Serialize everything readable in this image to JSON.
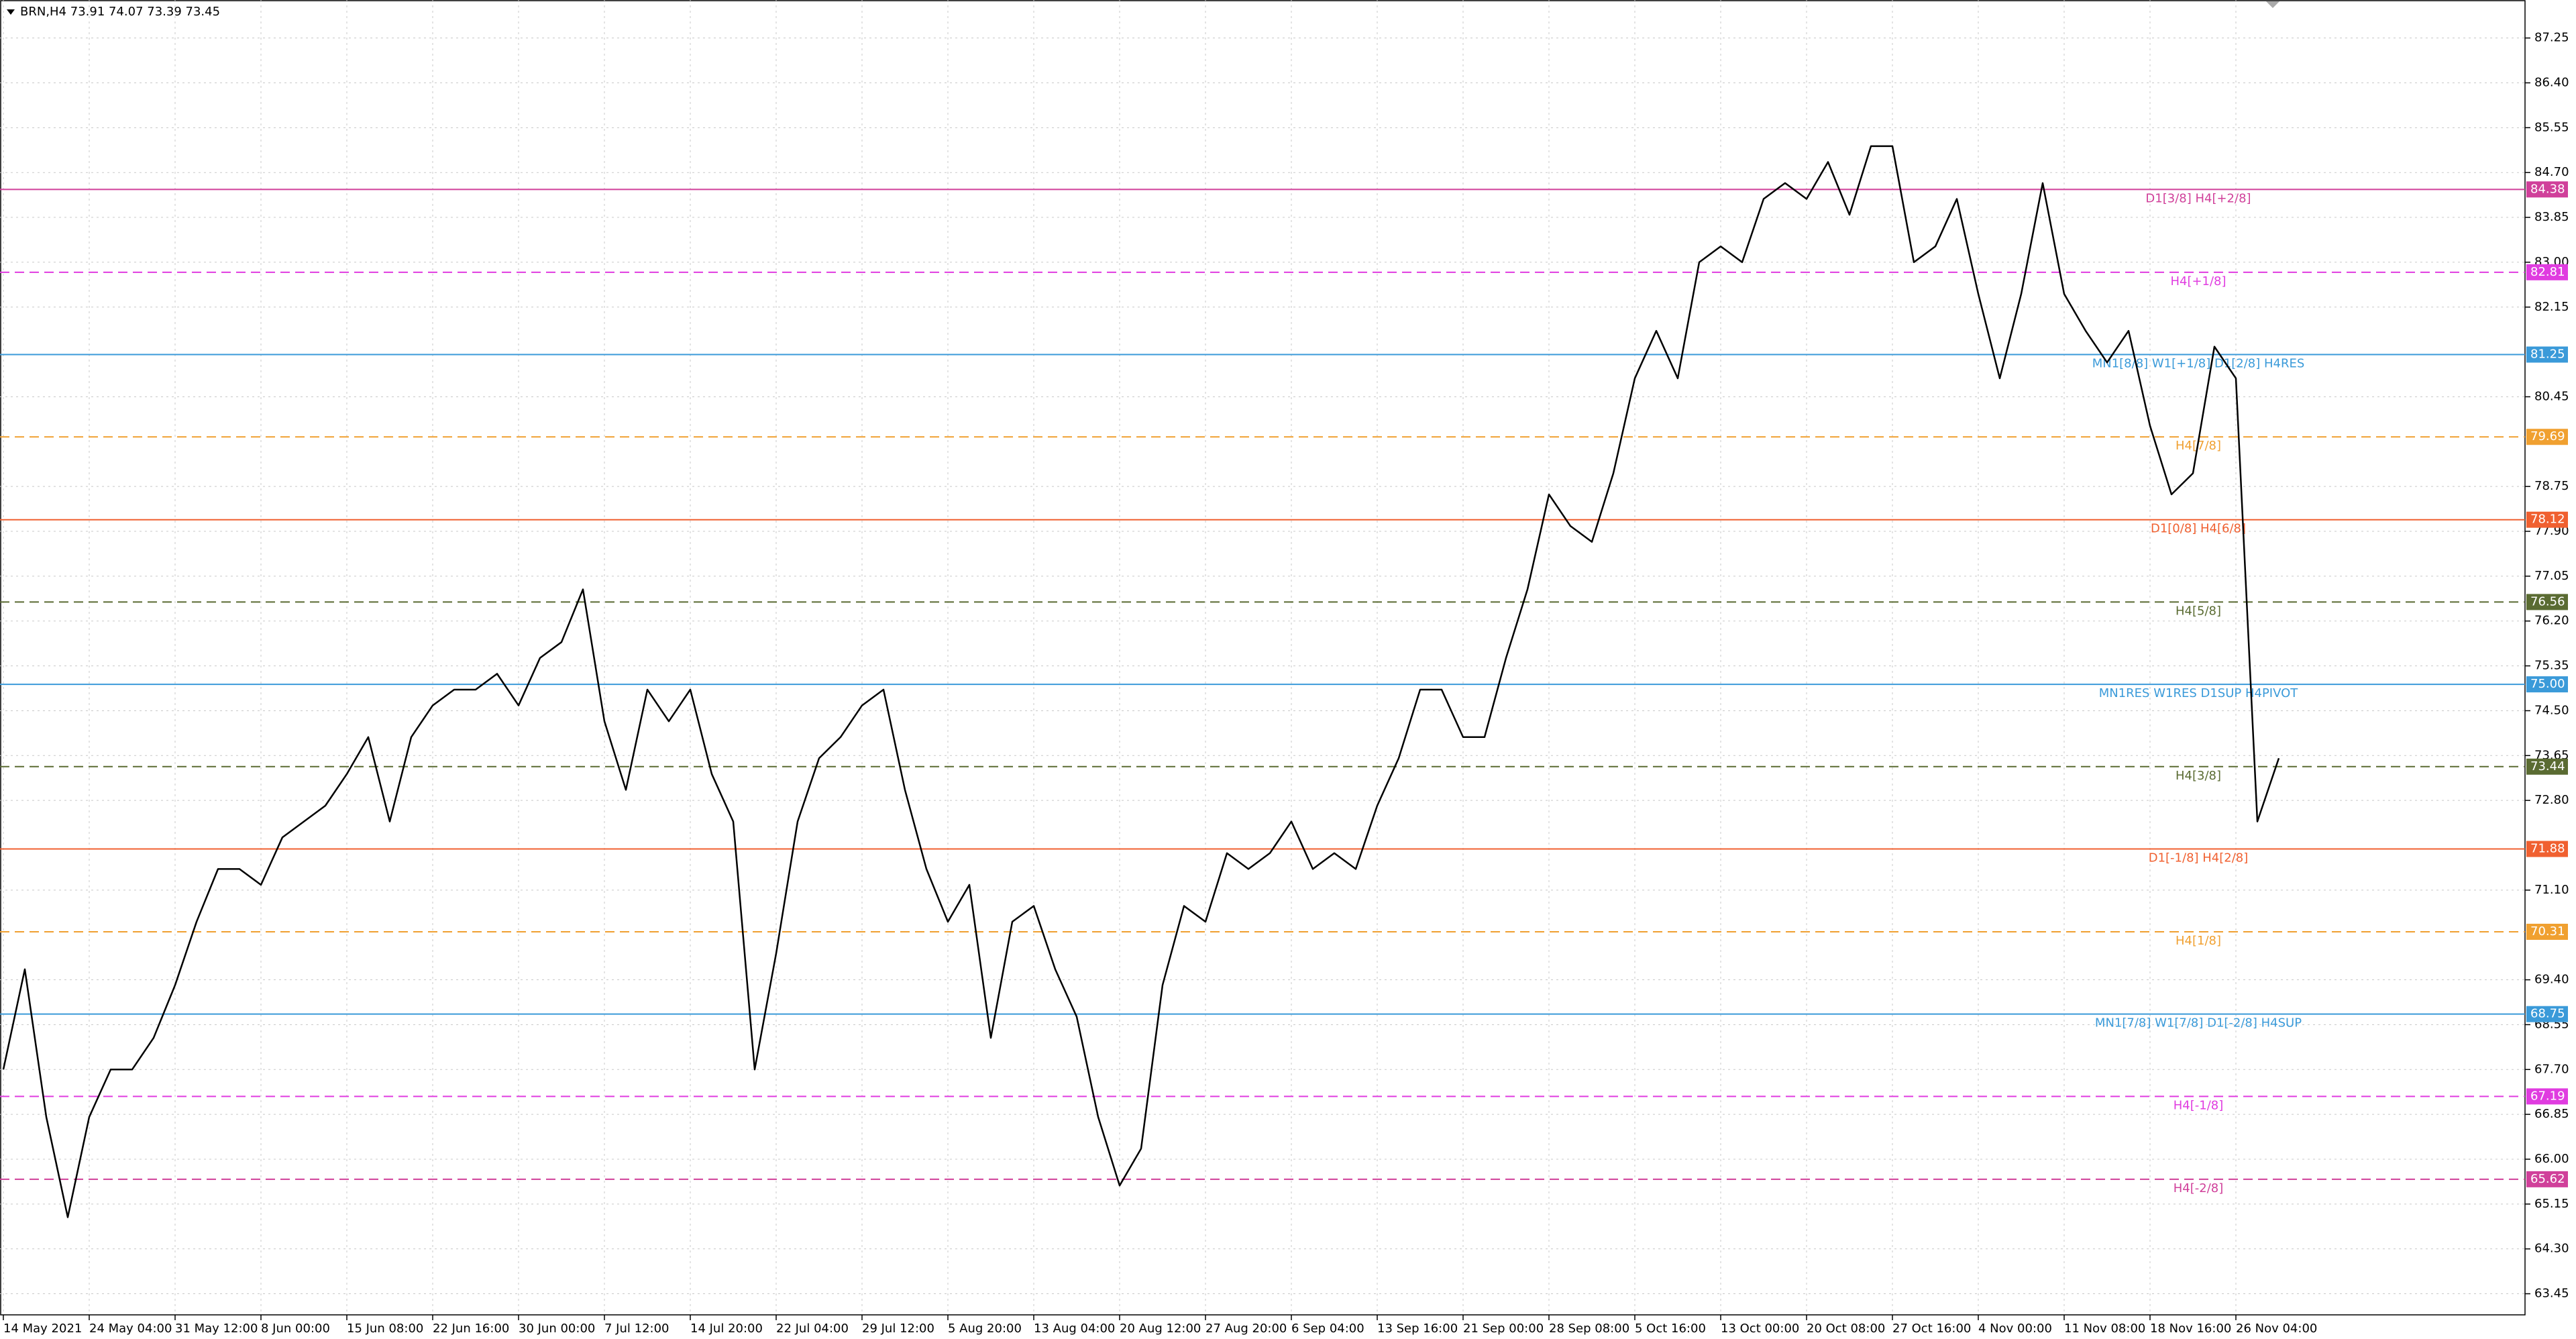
{
  "header": "BRN,H4  73.91 74.07 73.39 73.45",
  "chart_data": {
    "type": "line",
    "color": "#000000",
    "grid": true,
    "ylim": [
      63.05,
      87.97
    ],
    "yticks": [
      {
        "value": 87.25,
        "label": "87.25"
      },
      {
        "value": 86.4,
        "label": "86.40"
      },
      {
        "value": 85.55,
        "label": "85.55"
      },
      {
        "value": 84.7,
        "label": "84.70"
      },
      {
        "value": 83.85,
        "label": "83.85"
      },
      {
        "value": 83,
        "label": "83.00"
      },
      {
        "value": 82.15,
        "label": "82.15"
      },
      {
        "value": 80.45,
        "label": "80.45"
      },
      {
        "value": 78.75,
        "label": "78.75"
      },
      {
        "value": 77.9,
        "label": "77.90"
      },
      {
        "value": 77.05,
        "label": "77.05"
      },
      {
        "value": 76.2,
        "label": "76.20"
      },
      {
        "value": 75.35,
        "label": "75.35"
      },
      {
        "value": 74.5,
        "label": "74.50"
      },
      {
        "value": 73.65,
        "label": "73.65"
      },
      {
        "value": 72.8,
        "label": "72.80"
      },
      {
        "value": 71.1,
        "label": "71.10"
      },
      {
        "value": 69.4,
        "label": "69.40"
      },
      {
        "value": 68.55,
        "label": "68.55"
      },
      {
        "value": 67.7,
        "label": "67.70"
      },
      {
        "value": 66.85,
        "label": "66.85"
      },
      {
        "value": 66,
        "label": "66.00"
      },
      {
        "value": 65.15,
        "label": "65.15"
      },
      {
        "value": 64.3,
        "label": "64.30"
      },
      {
        "value": 63.45,
        "label": "63.45"
      }
    ],
    "categories": [
      "14 May 2021",
      null,
      null,
      null,
      "24 May 04:00",
      null,
      null,
      null,
      "31 May 12:00",
      null,
      null,
      null,
      "8 Jun 00:00",
      null,
      null,
      null,
      "15 Jun 08:00",
      null,
      null,
      null,
      "22 Jun 16:00",
      null,
      null,
      null,
      "30 Jun 00:00",
      null,
      null,
      null,
      "7 Jul 12:00",
      null,
      null,
      null,
      "14 Jul 20:00",
      null,
      null,
      null,
      "22 Jul 04:00",
      null,
      null,
      null,
      "29 Jul 12:00",
      null,
      null,
      null,
      "5 Aug 20:00",
      null,
      null,
      null,
      "13 Aug 04:00",
      null,
      null,
      null,
      "20 Aug 12:00",
      null,
      null,
      null,
      "27 Aug 20:00",
      null,
      null,
      null,
      "6 Sep 04:00",
      null,
      null,
      null,
      "13 Sep 16:00",
      null,
      null,
      null,
      "21 Sep 00:00",
      null,
      null,
      null,
      "28 Sep 08:00",
      null,
      null,
      null,
      "5 Oct 16:00",
      null,
      null,
      null,
      "13 Oct 00:00",
      null,
      null,
      null,
      "20 Oct 08:00",
      null,
      null,
      null,
      "27 Oct 16:00",
      null,
      null,
      null,
      "4 Nov 00:00",
      null,
      null,
      null,
      "11 Nov 08:00",
      null,
      null,
      null,
      "18 Nov 16:00",
      null,
      null,
      null,
      "26 Nov 04:00",
      null,
      null
    ],
    "values": [
      67.7,
      69.6,
      66.8,
      64.9,
      66.8,
      67.7,
      67.7,
      68.3,
      69.3,
      70.5,
      71.5,
      71.5,
      71.2,
      72.1,
      72.4,
      72.7,
      73.3,
      74.0,
      72.4,
      74.0,
      74.6,
      74.9,
      74.9,
      75.2,
      74.6,
      75.5,
      75.8,
      76.8,
      74.3,
      73.0,
      74.9,
      74.3,
      74.9,
      73.3,
      72.4,
      67.7,
      69.9,
      72.4,
      73.6,
      74.0,
      74.6,
      74.9,
      73.0,
      71.5,
      70.5,
      71.2,
      68.3,
      70.5,
      70.8,
      69.6,
      68.7,
      66.8,
      65.5,
      66.2,
      69.3,
      70.8,
      70.5,
      71.8,
      71.5,
      71.8,
      72.4,
      71.5,
      71.8,
      71.5,
      72.7,
      73.6,
      74.9,
      74.9,
      74.0,
      74.0,
      75.5,
      76.8,
      78.6,
      78.0,
      77.7,
      79.0,
      80.8,
      81.7,
      80.8,
      83.0,
      83.3,
      83.0,
      84.2,
      84.5,
      84.2,
      84.9,
      83.9,
      85.2,
      85.2,
      83.0,
      83.3,
      84.2,
      82.4,
      80.8,
      82.4,
      84.5,
      82.4,
      81.7,
      81.1,
      81.7,
      79.9,
      78.6,
      79.0,
      81.4,
      80.8,
      72.4,
      73.6
    ],
    "levels": [
      {
        "value": 84.38,
        "value_label": "84.38",
        "label": "D1[3/8] H4[+2/8]",
        "color": "#d0409a",
        "dashed": false
      },
      {
        "value": 82.81,
        "value_label": "82.81",
        "label": "H4[+1/8]",
        "color": "#e03ce0",
        "dashed": true
      },
      {
        "value": 81.25,
        "value_label": "81.25",
        "label": "MN1[8/8] W1[+1/8] D1[2/8] H4RES",
        "color": "#3a9ad9",
        "dashed": false
      },
      {
        "value": 79.69,
        "value_label": "79.69",
        "label": "H4[7/8]",
        "color": "#f0a030",
        "dashed": true
      },
      {
        "value": 78.12,
        "value_label": "78.12",
        "label": "D1[0/8] H4[6/8]",
        "color": "#f06030",
        "dashed": false
      },
      {
        "value": 76.56,
        "value_label": "76.56",
        "label": "H4[5/8]",
        "color": "#5a6b32",
        "dashed": true
      },
      {
        "value": 75,
        "value_label": "75.00",
        "label": "MN1RES W1RES D1SUP H4PIVOT",
        "color": "#3a9ad9",
        "dashed": false
      },
      {
        "value": 73.44,
        "value_label": "73.44",
        "label": "H4[3/8]",
        "color": "#5a6b32",
        "dashed": true
      },
      {
        "value": 71.88,
        "value_label": "71.88",
        "label": "D1[-1/8] H4[2/8]",
        "color": "#f06030",
        "dashed": false
      },
      {
        "value": 70.31,
        "value_label": "70.31",
        "label": "H4[1/8]",
        "color": "#f0a030",
        "dashed": true
      },
      {
        "value": 68.75,
        "value_label": "68.75",
        "label": "MN1[7/8] W1[7/8] D1[-2/8] H4SUP",
        "color": "#3a9ad9",
        "dashed": false
      },
      {
        "value": 67.19,
        "value_label": "67.19",
        "label": "H4[-1/8]",
        "color": "#e03ce0",
        "dashed": true
      },
      {
        "value": 65.62,
        "value_label": "65.62",
        "label": "H4[-2/8]",
        "color": "#d0409a",
        "dashed": true
      }
    ]
  }
}
